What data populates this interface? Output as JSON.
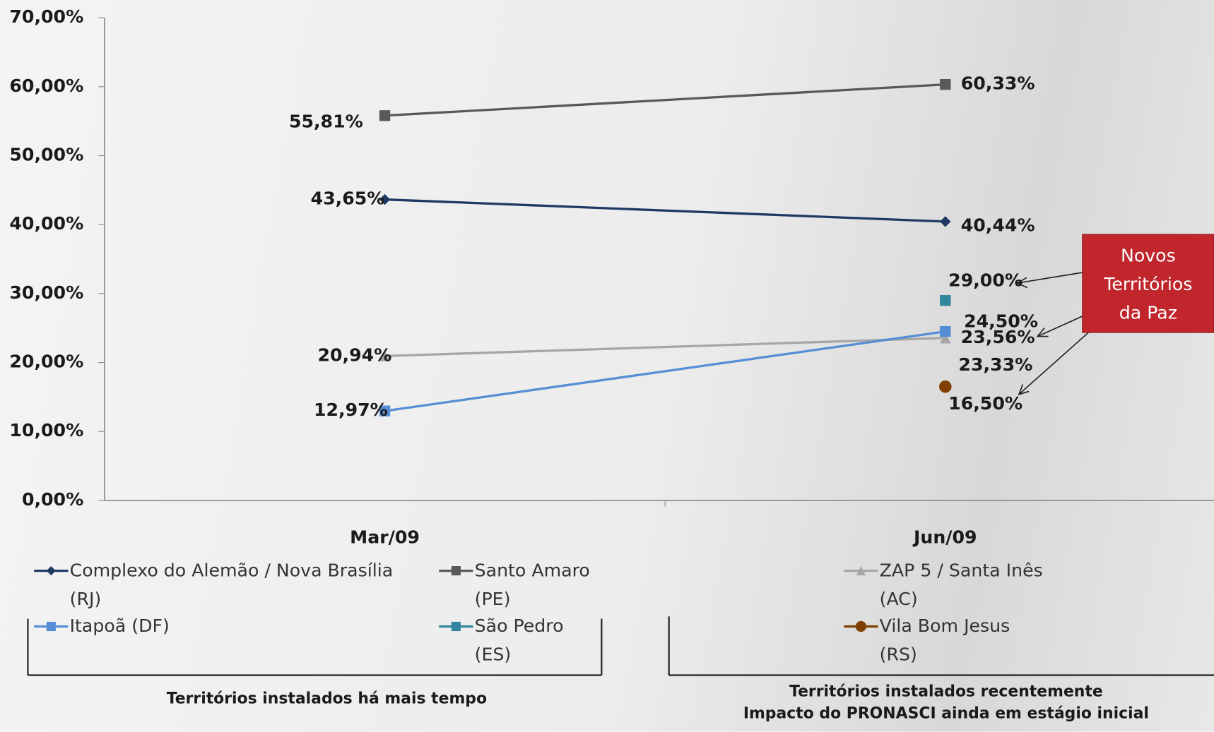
{
  "chart_data": {
    "type": "line",
    "categories": [
      "Mar/09",
      "Jun/09"
    ],
    "ylim": [
      0,
      70
    ],
    "yticks": [
      {
        "value": 0,
        "label": "0,00%"
      },
      {
        "value": 10,
        "label": "10,00%"
      },
      {
        "value": 20,
        "label": "20,00%"
      },
      {
        "value": 30,
        "label": "30,00%"
      },
      {
        "value": 40,
        "label": "40,00%"
      },
      {
        "value": 50,
        "label": "50,00%"
      },
      {
        "value": 60,
        "label": "60,00%"
      },
      {
        "value": 70,
        "label": "70,00%"
      }
    ],
    "series": [
      {
        "name": "Complexo do Alemão / Nova Brasília (RJ)",
        "color": "#1f3864",
        "marker": "diamond",
        "values": [
          43.65,
          40.44
        ],
        "value_labels": [
          "43,65%",
          "40,44%"
        ]
      },
      {
        "name": "Santo Amaro (PE)",
        "color": "#595959",
        "marker": "square",
        "values": [
          55.81,
          60.33
        ],
        "value_labels": [
          "55,81%",
          "60,33%"
        ]
      },
      {
        "name": "ZAP 5 / Santa Inês (AC)",
        "color": "#a6a6a6",
        "marker": "triangle",
        "values": [
          20.94,
          23.56
        ],
        "value_labels": [
          "20,94%",
          "23,56%"
        ]
      },
      {
        "name": "Itapoã (DF)",
        "color": "#558ed5",
        "marker": "square",
        "values": [
          12.97,
          24.5
        ],
        "value_labels": [
          "12,97%",
          "24,50%"
        ]
      },
      {
        "name": "São Pedro (ES)",
        "color": "#31859c",
        "marker": "square",
        "values": [
          null,
          29.0
        ],
        "value_labels": [
          null,
          "29,00%"
        ]
      },
      {
        "name": "Vila Bom Jesus (RS)",
        "color": "#7f3f00",
        "marker": "circle",
        "values": [
          null,
          16.5
        ],
        "value_labels": [
          null,
          "16,50%"
        ]
      }
    ],
    "annotations": {
      "extra_label": "23,33%",
      "callout": "Novos Territórios da Paz",
      "group_left": "Territórios instalados há mais tempo",
      "group_right_1": "Territórios instalados recentemente",
      "group_right_2": "Impacto do PRONASCI ainda em estágio inicial"
    }
  }
}
